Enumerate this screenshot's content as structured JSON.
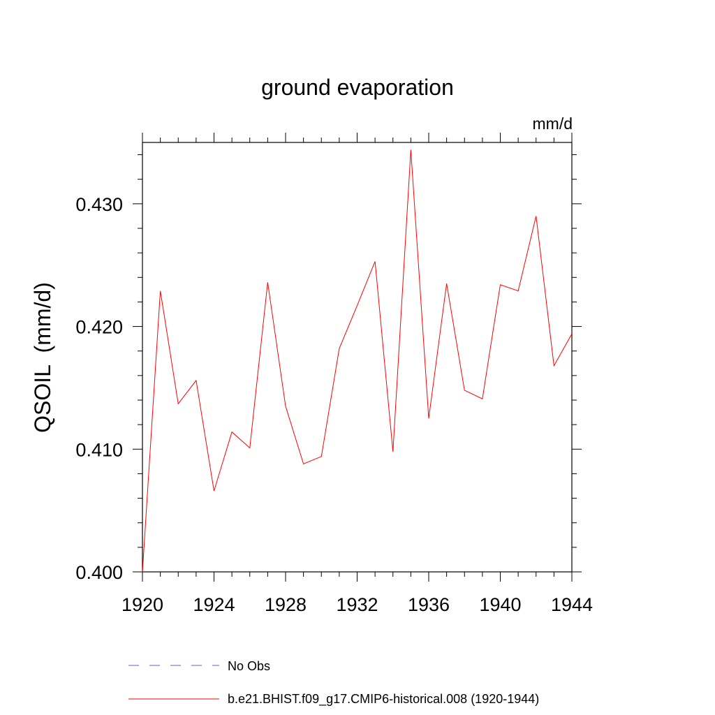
{
  "chart_data": {
    "type": "line",
    "title": "ground evaporation",
    "units_label": "mm/d",
    "ylabel": "QSOIL  (mm/d)",
    "xlabel": "",
    "xlim": [
      1920,
      1944
    ],
    "ylim": [
      0.4,
      0.435
    ],
    "x_ticks": [
      1920,
      1924,
      1928,
      1932,
      1936,
      1940,
      1944
    ],
    "x_tick_labels": [
      "1920",
      "1924",
      "1928",
      "1932",
      "1936",
      "1940",
      "1944"
    ],
    "y_ticks": [
      0.4,
      0.41,
      0.42,
      0.43
    ],
    "y_tick_labels": [
      "0.400",
      "0.410",
      "0.420",
      "0.430"
    ],
    "grid": false,
    "legend_position": "bottom",
    "series": [
      {
        "name": "b.e21.BHIST.f09_g17.CMIP6-historical.008 (1920-1944)",
        "color": "#ff0000",
        "dash": "solid",
        "x": [
          1920,
          1921,
          1922,
          1923,
          1924,
          1925,
          1926,
          1927,
          1928,
          1929,
          1930,
          1931,
          1932,
          1933,
          1934,
          1935,
          1936,
          1937,
          1938,
          1939,
          1940,
          1941,
          1942,
          1943,
          1944
        ],
        "values": [
          0.4,
          0.4229,
          0.4137,
          0.4156,
          0.4066,
          0.4114,
          0.4101,
          0.4236,
          0.4135,
          0.4088,
          0.4094,
          0.4182,
          0.4217,
          0.4253,
          0.4098,
          0.4344,
          0.4125,
          0.4235,
          0.4148,
          0.4141,
          0.4234,
          0.4229,
          0.429,
          0.4168,
          0.4194
        ]
      }
    ],
    "legend": [
      {
        "label": "No Obs",
        "color": "#6a5acd",
        "dash": "dashed"
      },
      {
        "label": "b.e21.BHIST.f09_g17.CMIP6-historical.008 (1920-1944)",
        "color": "#ff0000",
        "dash": "solid"
      }
    ]
  }
}
